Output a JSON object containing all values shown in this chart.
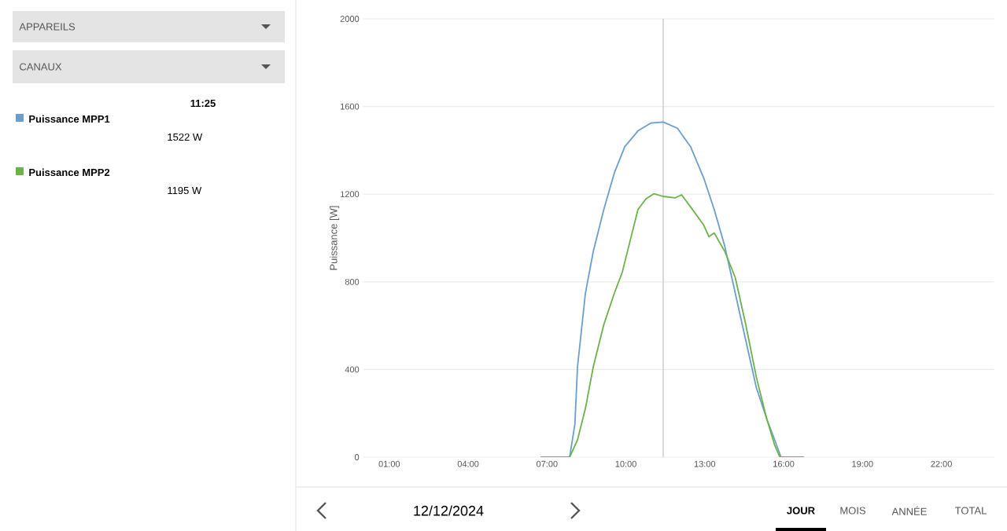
{
  "chart_data": {
    "type": "line",
    "ylabel": "Puissance [W]",
    "xlim": [
      0,
      24
    ],
    "ylim": [
      0,
      2000
    ],
    "xticks": [
      {
        "value": 1,
        "label": "01:00"
      },
      {
        "value": 4,
        "label": "04:00"
      },
      {
        "value": 7,
        "label": "07:00"
      },
      {
        "value": 10,
        "label": "10:00"
      },
      {
        "value": 13,
        "label": "13:00"
      },
      {
        "value": 16,
        "label": "16:00"
      },
      {
        "value": 19,
        "label": "19:00"
      },
      {
        "value": 22,
        "label": "22:00"
      }
    ],
    "yticks": [
      0,
      400,
      800,
      1200,
      1600,
      2000
    ],
    "grid": "y",
    "legend": "left",
    "marker": "none",
    "line_style": "solid",
    "ref_lines": [
      {
        "axis": "x",
        "value": 11.42,
        "color": "#d0d0d0"
      }
    ],
    "series": [
      {
        "name": "Puissance MPP1",
        "color": "#6b9fcb",
        "x": [
          6.76,
          7.86,
          8.06,
          8.16,
          8.46,
          8.76,
          9.16,
          9.56,
          9.96,
          10.46,
          10.96,
          11.42,
          11.96,
          12.46,
          12.96,
          13.36,
          13.76,
          14.16,
          14.56,
          14.96,
          15.36,
          15.66,
          15.9,
          16.76
        ],
        "values": [
          0,
          0,
          150,
          413,
          748,
          939,
          1130,
          1297,
          1417,
          1489,
          1525,
          1529,
          1501,
          1417,
          1274,
          1130,
          963,
          748,
          533,
          318,
          174,
          79,
          0,
          0
        ]
      },
      {
        "name": "Puissance MPP2",
        "color": "#6cb24c",
        "x": [
          6.76,
          7.86,
          8.16,
          8.46,
          8.76,
          9.16,
          9.56,
          9.86,
          10.16,
          10.46,
          10.76,
          11.06,
          11.42,
          11.86,
          12.12,
          12.46,
          12.96,
          13.16,
          13.36,
          13.76,
          14.16,
          14.56,
          14.96,
          15.36,
          15.66,
          15.86,
          16.76
        ],
        "values": [
          0,
          0,
          79,
          222,
          413,
          605,
          748,
          843,
          987,
          1130,
          1178,
          1202,
          1190,
          1183,
          1197,
          1142,
          1059,
          1006,
          1023,
          939,
          820,
          605,
          366,
          174,
          55,
          0,
          0
        ]
      }
    ],
    "annotations": [
      "APPAREILS",
      "CANAUX",
      "11:25",
      "1522 W",
      "1195 W",
      "12/12/2024",
      "JOUR",
      "MOIS",
      "ANNÉE",
      "TOTAL"
    ]
  }
}
